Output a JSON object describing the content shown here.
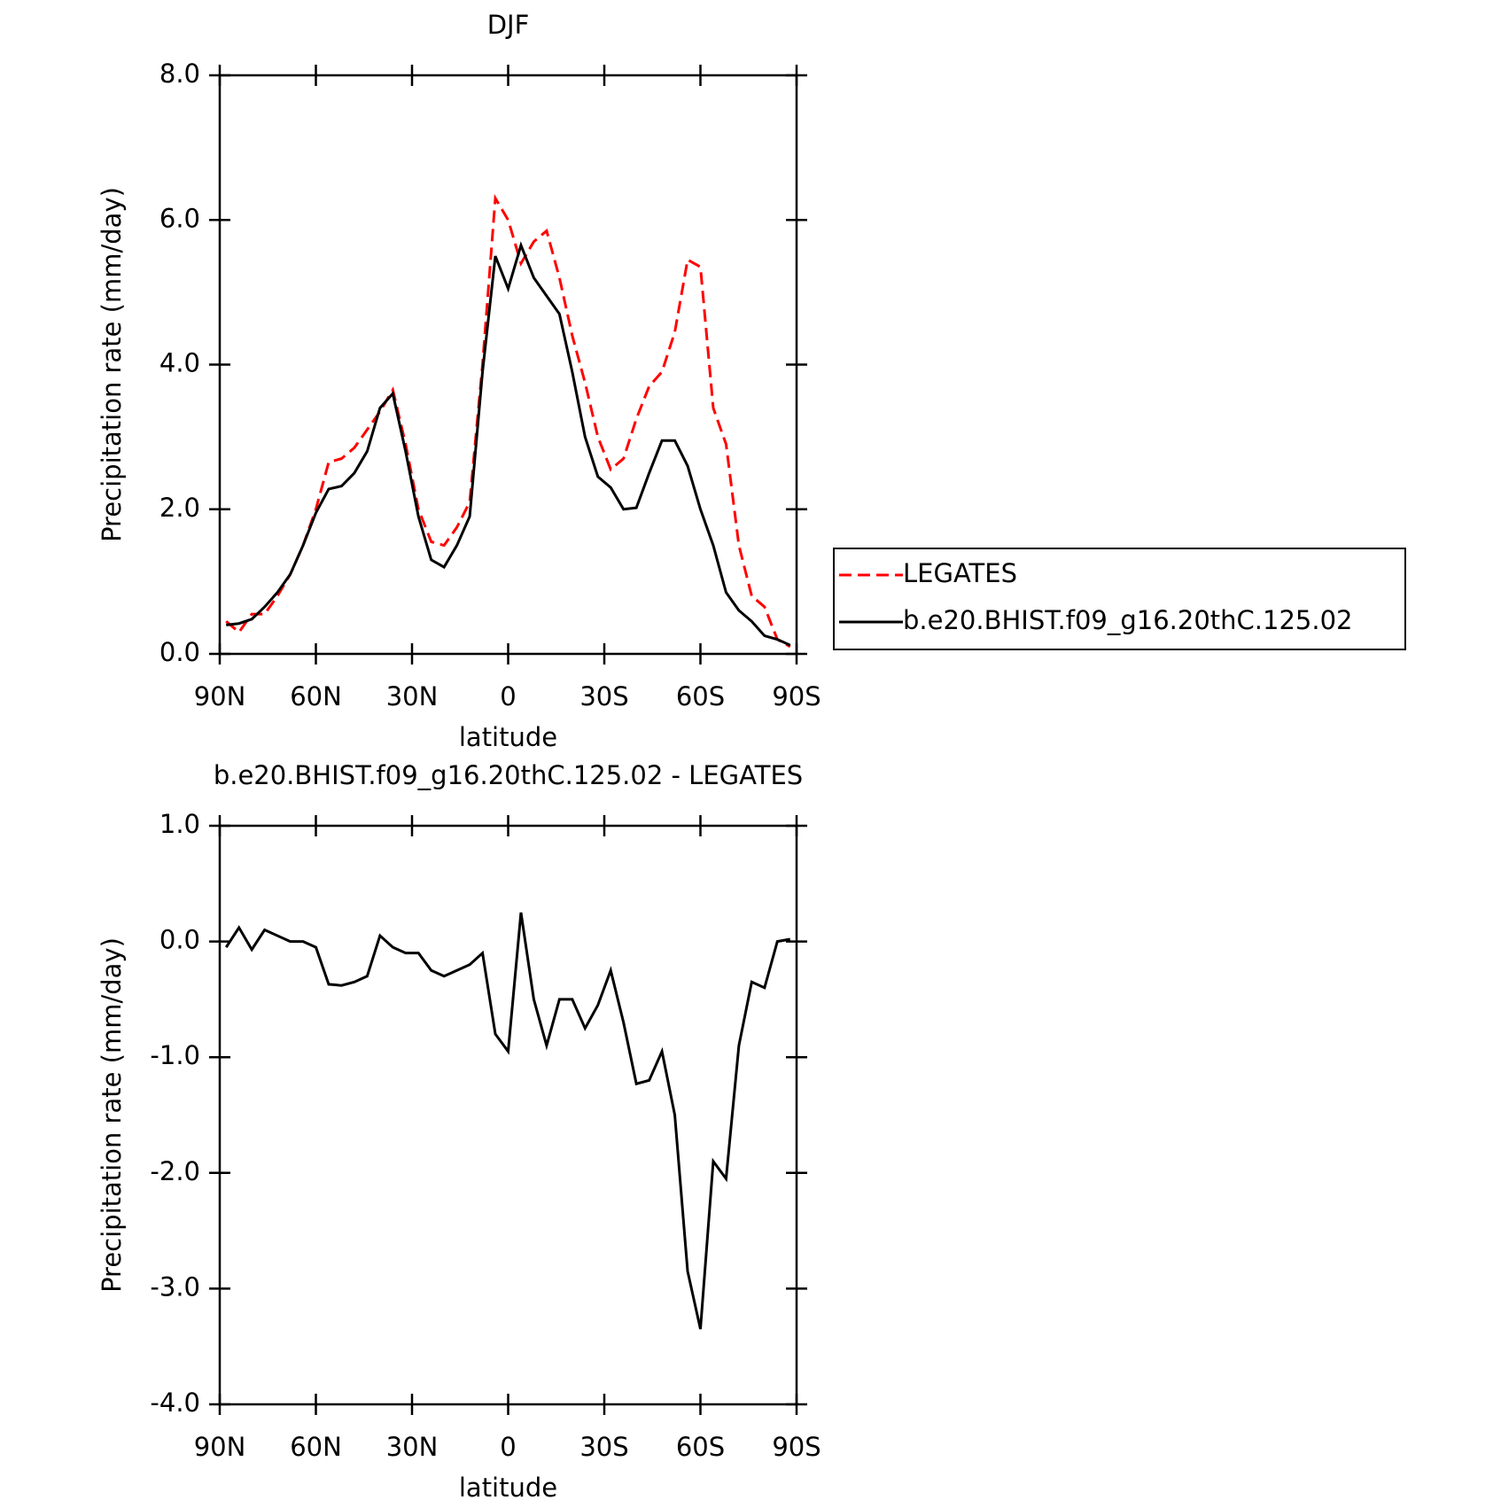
{
  "chart_data": [
    {
      "type": "line",
      "title": "DJF",
      "x_label": "latitude",
      "y_label": "Precipitation rate (mm/day)",
      "x": [
        88,
        84,
        80,
        76,
        72,
        68,
        64,
        60,
        56,
        52,
        48,
        44,
        40,
        36,
        32,
        28,
        24,
        20,
        16,
        12,
        8,
        4,
        0,
        -4,
        -8,
        -12,
        -16,
        -20,
        -24,
        -28,
        -32,
        -36,
        -40,
        -44,
        -48,
        -52,
        -56,
        -60,
        -64,
        -68,
        -72,
        -76,
        -80,
        -84,
        -88
      ],
      "xlim": [
        90,
        -90
      ],
      "xticks": [
        {
          "value": 90,
          "label": "90N"
        },
        {
          "value": 60,
          "label": "60N"
        },
        {
          "value": 30,
          "label": "30N"
        },
        0,
        {
          "value": -30,
          "label": "30S"
        },
        {
          "value": -60,
          "label": "60S"
        },
        {
          "value": -90,
          "label": "90S"
        }
      ],
      "ylim": [
        0,
        8
      ],
      "yticks": [
        {
          "value": 0,
          "label": "0.0"
        },
        {
          "value": 2,
          "label": "2.0"
        },
        {
          "value": 4,
          "label": "4.0"
        },
        {
          "value": 6,
          "label": "6.0"
        },
        {
          "value": 8,
          "label": "8.0"
        }
      ],
      "legend": "right",
      "series": [
        {
          "name": "LEGATES",
          "color": "#ff0000",
          "dash": true,
          "values": [
            0.45,
            0.3,
            0.55,
            0.55,
            0.8,
            1.1,
            1.5,
            2.0,
            2.65,
            2.7,
            2.85,
            3.1,
            3.35,
            3.65,
            2.9,
            2.0,
            1.55,
            1.5,
            1.75,
            2.1,
            4.0,
            6.3,
            6.0,
            5.4,
            5.7,
            5.85,
            5.2,
            4.4,
            3.75,
            3.0,
            2.55,
            2.7,
            3.25,
            3.7,
            3.9,
            4.45,
            5.45,
            5.35,
            3.4,
            2.9,
            1.5,
            0.8,
            0.65,
            0.2,
            0.1
          ]
        },
        {
          "name": "b.e20.BHIST.f09_g16.20thC.125.02",
          "color": "#000000",
          "dash": false,
          "values": [
            0.4,
            0.42,
            0.48,
            0.65,
            0.85,
            1.1,
            1.5,
            1.95,
            2.28,
            2.32,
            2.5,
            2.8,
            3.4,
            3.6,
            2.8,
            1.9,
            1.3,
            1.2,
            1.5,
            1.9,
            3.9,
            5.5,
            5.05,
            5.65,
            5.2,
            4.95,
            4.7,
            3.9,
            3.0,
            2.45,
            2.3,
            2.0,
            2.02,
            2.5,
            2.95,
            2.95,
            2.6,
            2.0,
            1.5,
            0.85,
            0.6,
            0.45,
            0.25,
            0.2,
            0.12
          ]
        }
      ]
    },
    {
      "type": "line",
      "title": "b.e20.BHIST.f09_g16.20thC.125.02 - LEGATES",
      "x_label": "latitude",
      "y_label": "Precipitation rate (mm/day)",
      "x": [
        88,
        84,
        80,
        76,
        72,
        68,
        64,
        60,
        56,
        52,
        48,
        44,
        40,
        36,
        32,
        28,
        24,
        20,
        16,
        12,
        8,
        4,
        0,
        -4,
        -8,
        -12,
        -16,
        -20,
        -24,
        -28,
        -32,
        -36,
        -40,
        -44,
        -48,
        -52,
        -56,
        -60,
        -64,
        -68,
        -72,
        -76,
        -80,
        -84,
        -88
      ],
      "xlim": [
        90,
        -90
      ],
      "xticks": [
        {
          "value": 90,
          "label": "90N"
        },
        {
          "value": 60,
          "label": "60N"
        },
        {
          "value": 30,
          "label": "30N"
        },
        0,
        {
          "value": -30,
          "label": "30S"
        },
        {
          "value": -60,
          "label": "60S"
        },
        {
          "value": -90,
          "label": "90S"
        }
      ],
      "ylim": [
        -4,
        1
      ],
      "yticks": [
        {
          "value": -4,
          "label": "-4.0"
        },
        {
          "value": -3,
          "label": "-3.0"
        },
        {
          "value": -2,
          "label": "-2.0"
        },
        {
          "value": -1,
          "label": "-1.0"
        },
        {
          "value": 0,
          "label": "0.0"
        },
        {
          "value": 1,
          "label": "1.0"
        }
      ],
      "series": [
        {
          "color": "#000000",
          "dash": false,
          "values": [
            -0.05,
            0.12,
            -0.07,
            0.1,
            0.05,
            0.0,
            0.0,
            -0.05,
            -0.37,
            -0.38,
            -0.35,
            -0.3,
            0.05,
            -0.05,
            -0.1,
            -0.1,
            -0.25,
            -0.3,
            -0.25,
            -0.2,
            -0.1,
            -0.8,
            -0.95,
            0.25,
            -0.5,
            -0.9,
            -0.5,
            -0.5,
            -0.75,
            -0.55,
            -0.25,
            -0.7,
            -1.23,
            -1.2,
            -0.95,
            -1.5,
            -2.85,
            -3.35,
            -1.9,
            -2.05,
            -0.9,
            -0.35,
            -0.4,
            0.0,
            0.02
          ]
        }
      ]
    }
  ]
}
